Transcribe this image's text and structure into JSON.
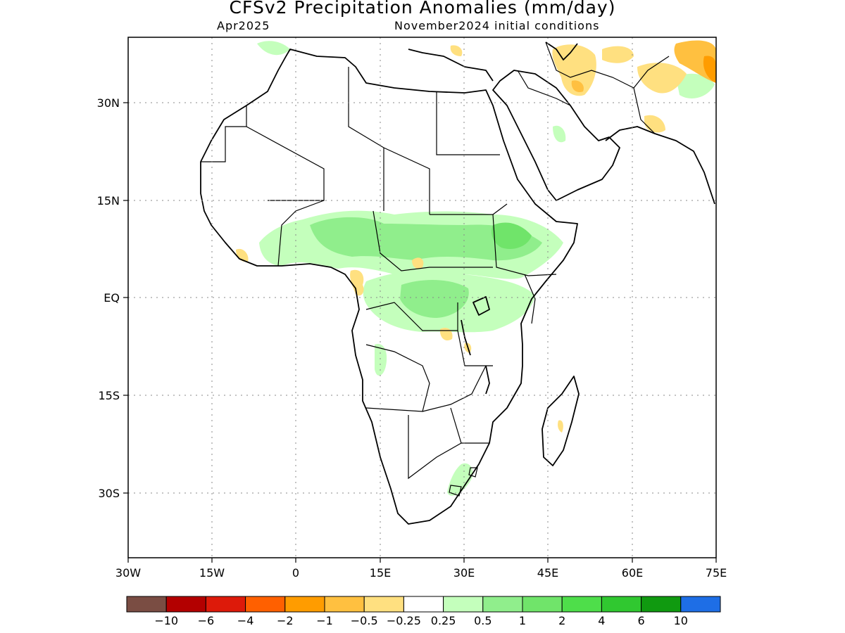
{
  "header": {
    "title": "CFSv2 Precipitation Anomalies (mm/day)",
    "valid_month": "Apr2025",
    "initial_conditions": "November2024 initial conditions"
  },
  "map": {
    "region": "Africa and Middle East",
    "lon_range": [
      -30,
      75
    ],
    "lat_range": [
      -40,
      40
    ],
    "x_ticks": [
      "30W",
      "15W",
      "0",
      "15E",
      "30E",
      "45E",
      "60E",
      "75E"
    ],
    "y_ticks": [
      "30N",
      "15N",
      "EQ",
      "15S",
      "30S"
    ],
    "grid": "dotted",
    "anomaly_summary": [
      {
        "area": "Sahel / West Africa (5-15N)",
        "sign": "wet",
        "range": "0.25 to 2"
      },
      {
        "area": "Central Africa / Congo Basin",
        "sign": "wet",
        "range": "0.25 to 2"
      },
      {
        "area": "Ethiopia / East Africa",
        "sign": "wet",
        "range": "0.25 to 2"
      },
      {
        "area": "Iran / Pakistan / Afghanistan",
        "sign": "dry",
        "range": "-0.25 to -2"
      },
      {
        "area": "Gabon / Cameroon coast",
        "sign": "dry",
        "range": "-0.25 to -1"
      },
      {
        "area": "Madagascar / Mozambique spots",
        "sign": "dry",
        "range": "-0.25 to -0.5"
      }
    ]
  },
  "legend": {
    "colors": [
      "#7a4d43",
      "#b30000",
      "#dd1a0a",
      "#ff6000",
      "#ff9c00",
      "#ffc040",
      "#ffe080",
      "#ffffff",
      "#c4ffbc",
      "#90ee8c",
      "#70e46a",
      "#4ede4a",
      "#30c830",
      "#109a10",
      "#1e6ee6"
    ],
    "labels": [
      "−10",
      "−6",
      "−4",
      "−2",
      "−1",
      "−0.5",
      "−0.25",
      "0.25",
      "0.5",
      "1",
      "2",
      "4",
      "6",
      "10"
    ]
  }
}
